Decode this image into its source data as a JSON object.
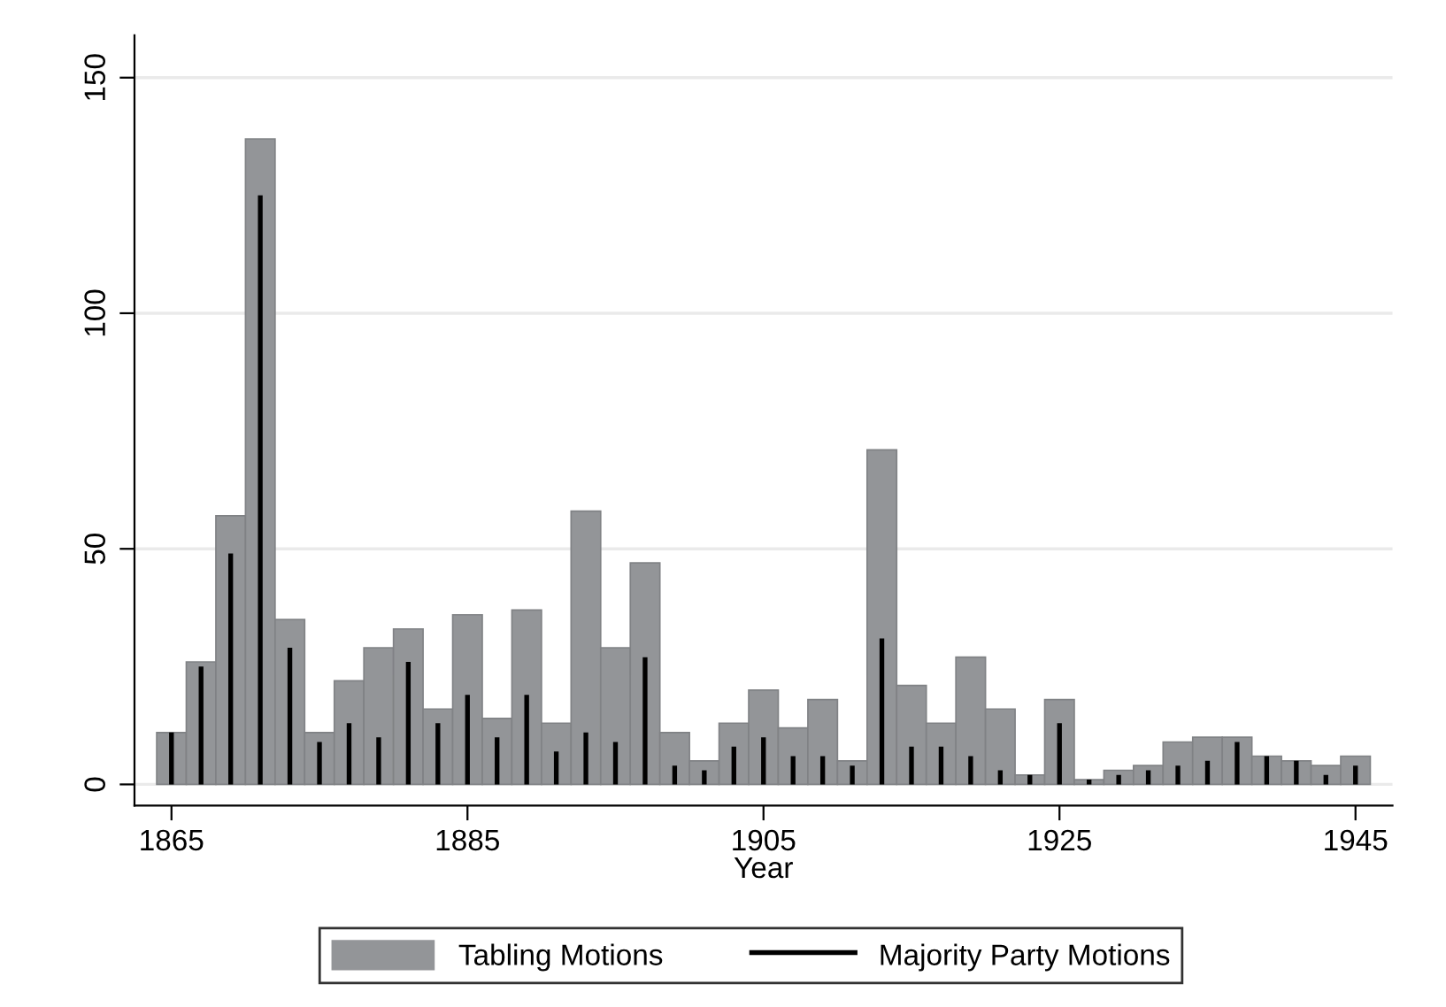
{
  "chart_data": {
    "type": "bar",
    "xlabel": "Year",
    "x": [
      1865,
      1867,
      1869,
      1871,
      1873,
      1875,
      1877,
      1879,
      1881,
      1883,
      1885,
      1887,
      1889,
      1891,
      1893,
      1895,
      1897,
      1899,
      1901,
      1903,
      1905,
      1907,
      1909,
      1911,
      1913,
      1915,
      1917,
      1919,
      1921,
      1923,
      1925,
      1927,
      1929,
      1931,
      1933,
      1935,
      1937,
      1939,
      1941,
      1943,
      1945
    ],
    "series": [
      {
        "name": "Tabling Motions",
        "color": "#939598",
        "values": [
          11,
          26,
          57,
          137,
          35,
          11,
          22,
          29,
          33,
          16,
          36,
          14,
          37,
          13,
          58,
          29,
          47,
          11,
          5,
          13,
          20,
          12,
          18,
          5,
          71,
          21,
          13,
          27,
          16,
          2,
          18,
          1,
          3,
          4,
          9,
          10,
          10,
          6,
          5,
          4,
          6
        ]
      },
      {
        "name": "Majority Party Motions",
        "color": "#000000",
        "values": [
          11,
          25,
          49,
          125,
          29,
          9,
          13,
          10,
          26,
          13,
          19,
          10,
          19,
          7,
          11,
          9,
          27,
          4,
          3,
          8,
          10,
          6,
          6,
          4,
          31,
          8,
          8,
          6,
          3,
          2,
          13,
          1,
          2,
          3,
          4,
          5,
          9,
          6,
          5,
          2,
          4
        ]
      }
    ],
    "xlim": [
      1862.5,
      1947.5
    ],
    "xticks": [
      1865,
      1885,
      1905,
      1925,
      1945
    ],
    "ylim": [
      -4.5,
      159
    ],
    "yticks": [
      0,
      50,
      100,
      150
    ],
    "grid": "y",
    "legend": "bottom"
  }
}
